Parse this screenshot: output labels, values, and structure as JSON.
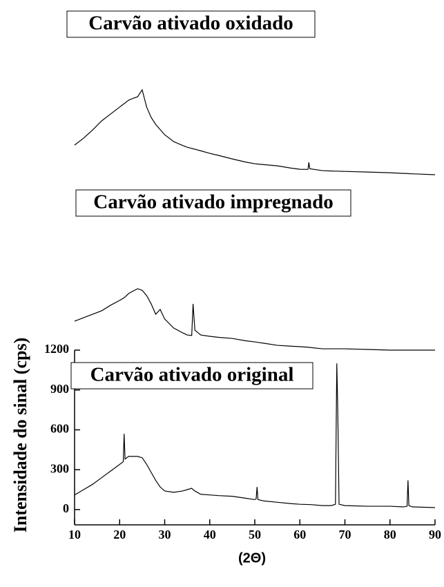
{
  "chart_data": {
    "type": "line",
    "xlabel": "(2Θ)",
    "ylabel": "Intensidade do sinal (cps)",
    "x": [
      10,
      12,
      14,
      16,
      18,
      20,
      20.8,
      21,
      21.2,
      22,
      23,
      24,
      25,
      26,
      27,
      28,
      29,
      30,
      32,
      34,
      35,
      36,
      36.3,
      36.7,
      38,
      40,
      42,
      45,
      48,
      50,
      50.3,
      50.5,
      50.7,
      52,
      55,
      58,
      60,
      61.8,
      62,
      62.2,
      65,
      67,
      67.9,
      68.2,
      68.4,
      68.7,
      70,
      75,
      80,
      83,
      83.8,
      84,
      84.2,
      85,
      90
    ],
    "series": [
      {
        "name": "Carvão ativado oxidado",
        "color": "#000000",
        "values": [
          2743,
          2795,
          2857,
          2925,
          2977,
          3029,
          3050,
          3055,
          3060,
          3081,
          3095,
          3107,
          3159,
          3029,
          2951,
          2899,
          2860,
          2821,
          2769,
          2740,
          2727,
          2718,
          2715,
          2712,
          2700,
          2681,
          2665,
          2639,
          2615,
          2603,
          2602,
          2601,
          2600,
          2596,
          2587,
          2570,
          2561,
          2560,
          2613,
          2565,
          2551,
          2548,
          2547,
          2547,
          2547,
          2546,
          2545,
          2540,
          2535,
          2530,
          2529,
          2529,
          2528,
          2527,
          2520
        ]
      },
      {
        "name": "Carvão ativado impregnado",
        "color": "#000000",
        "values": [
          1418,
          1444,
          1470,
          1496,
          1538,
          1574,
          1590,
          1595,
          1600,
          1626,
          1645,
          1662,
          1650,
          1610,
          1548,
          1470,
          1506,
          1434,
          1366,
          1330,
          1314,
          1310,
          1548,
          1350,
          1314,
          1304,
          1296,
          1288,
          1270,
          1262,
          1260,
          1260,
          1258,
          1252,
          1236,
          1230,
          1226,
          1222,
          1222,
          1220,
          1210,
          1210,
          1210,
          1210,
          1210,
          1210,
          1210,
          1205,
          1200,
          1200,
          1200,
          1200,
          1200,
          1200,
          1200
        ]
      },
      {
        "name": "Carvão ativado original",
        "color": "#000000",
        "values": [
          110,
          150,
          190,
          240,
          290,
          340,
          360,
          570,
          380,
          400,
          400,
          400,
          390,
          340,
          280,
          220,
          170,
          140,
          130,
          140,
          150,
          160,
          150,
          140,
          115,
          110,
          105,
          100,
          85,
          75,
          80,
          170,
          75,
          65,
          55,
          45,
          40,
          38,
          38,
          38,
          30,
          30,
          40,
          1100,
          780,
          40,
          30,
          25,
          25,
          20,
          25,
          220,
          30,
          20,
          15
        ]
      }
    ],
    "xlim": [
      10,
      90
    ],
    "xticks": [
      10,
      20,
      30,
      40,
      50,
      60,
      70,
      80,
      90
    ],
    "ylim": [
      -115,
      3835
    ],
    "yticks": [
      0,
      300,
      600,
      900,
      1200
    ]
  }
}
